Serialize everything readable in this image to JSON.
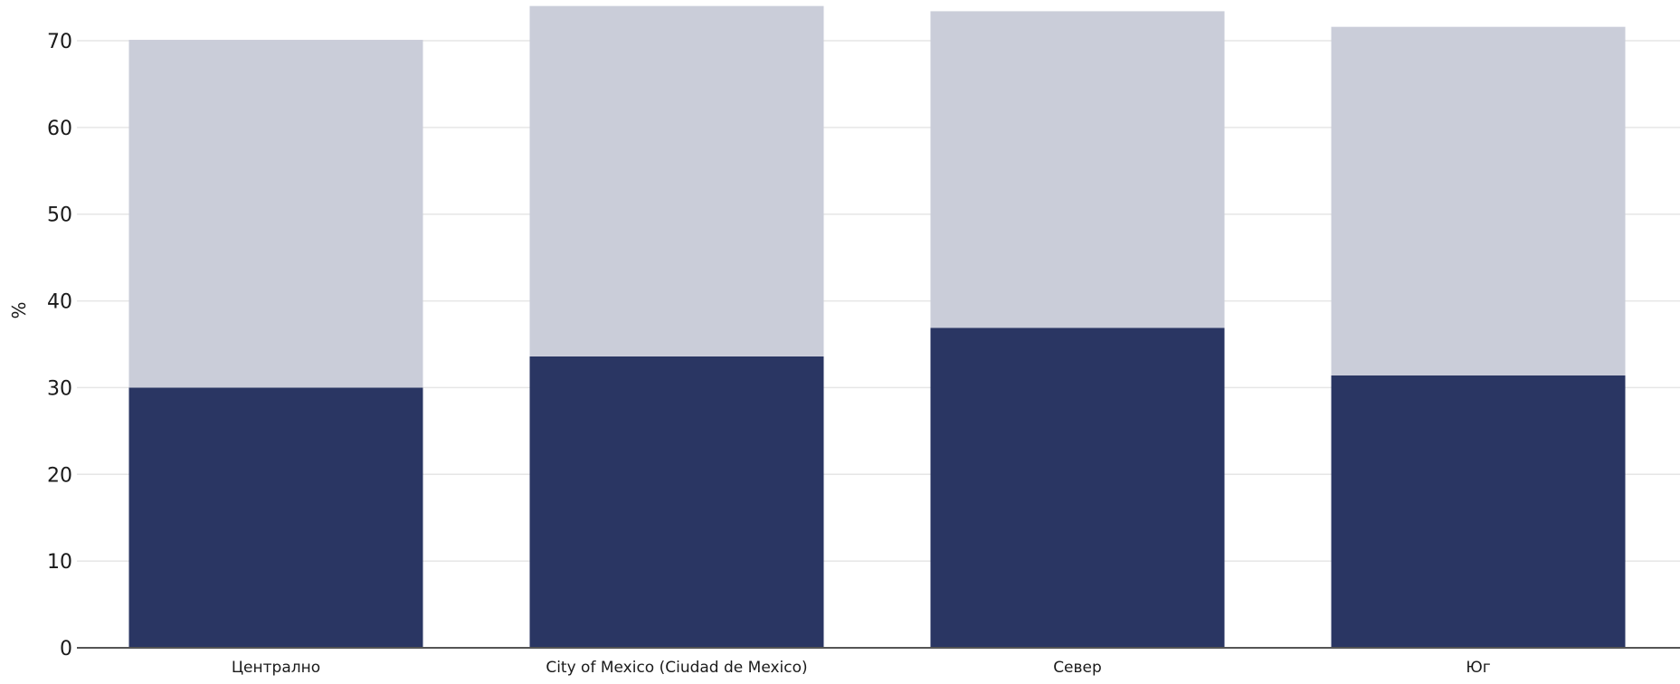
{
  "chart_data": {
    "type": "bar",
    "stacked": true,
    "categories": [
      "Централно",
      "City of Mexico (Ciudad de Mexico)",
      "Север",
      "Юг"
    ],
    "series": [
      {
        "values": [
          30.0,
          33.6,
          36.9,
          31.4
        ],
        "color": "#2a3663"
      },
      {
        "values": [
          40.1,
          40.4,
          36.5,
          40.2
        ],
        "color": "#cacdd9"
      }
    ],
    "ylabel": "%",
    "xlabel": "",
    "ylim": [
      0,
      74
    ],
    "yticks": [
      0,
      10,
      20,
      30,
      40,
      50,
      60,
      70
    ],
    "grid": true
  }
}
